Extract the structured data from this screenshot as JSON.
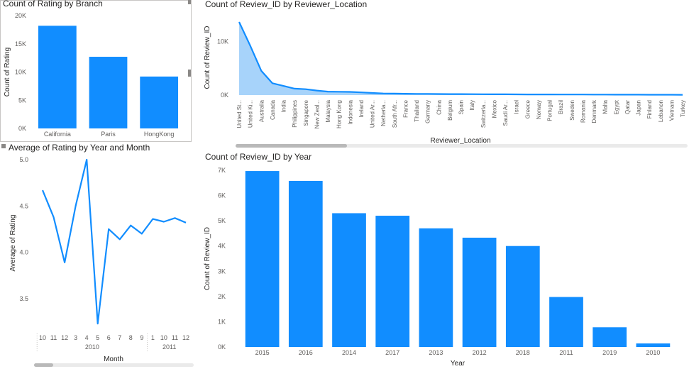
{
  "colors": {
    "bar": "#118DFF",
    "area_fill": "#A7D3FA",
    "axis_text": "#605E5C",
    "grid": "#E6E6E6"
  },
  "chart_data": [
    {
      "id": "branch",
      "type": "bar",
      "title": "Count of Rating by Branch",
      "xlabel": "",
      "ylabel": "Count of Rating",
      "categories": [
        "California",
        "Paris",
        "HongKong"
      ],
      "values": [
        18200,
        12700,
        9200
      ],
      "ylim": [
        0,
        20000
      ],
      "yticks": [
        "0K",
        "5K",
        "10K",
        "15K",
        "20K"
      ]
    },
    {
      "id": "location",
      "type": "area",
      "title": "Count of Review_ID by Reviewer_Location",
      "xlabel": "Reviewer_Location",
      "ylabel": "Count of Review_ID",
      "categories": [
        "United St...",
        "United Ki...",
        "Australia",
        "Canada",
        "India",
        "Philippines",
        "Singapore",
        "New Zeal...",
        "Malaysia",
        "Hong Kong",
        "Indonesia",
        "Ireland",
        "United Ar...",
        "Netherla...",
        "South Afr...",
        "France",
        "Thailand",
        "Germany",
        "China",
        "Belgium",
        "Spain",
        "Italy",
        "Switzerla...",
        "Mexico",
        "Saudi Ar...",
        "Israel",
        "Greece",
        "Norway",
        "Portugal",
        "Brazil",
        "Sweden",
        "Romania",
        "Denmark",
        "Malta",
        "Egypt",
        "Qatar",
        "Japan",
        "Finland",
        "Lebanon",
        "Vietnam",
        "Turkey"
      ],
      "values": [
        13600,
        9200,
        4500,
        2200,
        1700,
        1200,
        1100,
        850,
        650,
        620,
        600,
        500,
        400,
        300,
        280,
        250,
        230,
        220,
        200,
        190,
        180,
        170,
        160,
        150,
        140,
        130,
        125,
        120,
        115,
        110,
        105,
        100,
        95,
        90,
        85,
        80,
        75,
        70,
        65,
        60,
        55
      ],
      "ylim": [
        0,
        14000
      ],
      "yticks": [
        "0K",
        "10K"
      ]
    },
    {
      "id": "avgrating",
      "type": "line",
      "title": "Average of Rating by Year and Month",
      "xlabel": "Month",
      "ylabel": "Average of Rating",
      "x": [
        "10",
        "11",
        "12",
        "3",
        "4",
        "5",
        "6",
        "7",
        "8",
        "9",
        "1",
        "10",
        "11",
        "12"
      ],
      "groups": [
        {
          "label": "2010",
          "from": 0,
          "to": 9
        },
        {
          "label": "2011",
          "from": 10,
          "to": 13
        }
      ],
      "values": [
        4.67,
        4.38,
        3.89,
        4.5,
        5.0,
        3.23,
        4.25,
        4.14,
        4.29,
        4.2,
        4.36,
        4.33,
        4.37,
        4.32
      ],
      "ylim": [
        3.2,
        5.0
      ],
      "yticks": [
        "3.5",
        "4.0",
        "4.5",
        "5.0"
      ]
    },
    {
      "id": "year",
      "type": "bar",
      "title": "Count of Review_ID by Year",
      "xlabel": "Year",
      "ylabel": "Count of Review_ID",
      "categories": [
        "2015",
        "2016",
        "2014",
        "2017",
        "2013",
        "2012",
        "2018",
        "2011",
        "2019",
        "2010"
      ],
      "values": [
        6970,
        6580,
        5300,
        5200,
        4700,
        4330,
        4000,
        1980,
        780,
        140
      ],
      "ylim": [
        0,
        7000
      ],
      "yticks": [
        "0K",
        "1K",
        "2K",
        "3K",
        "4K",
        "5K",
        "6K",
        "7K"
      ]
    }
  ]
}
